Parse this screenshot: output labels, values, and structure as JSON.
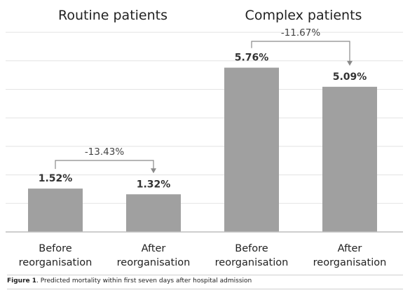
{
  "chart_data": {
    "type": "bar",
    "groups": [
      {
        "title": "Routine patients",
        "categories": [
          "Before reorganisation",
          "After reorganisation"
        ]
      },
      {
        "title": "Complex patients",
        "categories": [
          "Before reorganisation",
          "After reorganisation"
        ]
      }
    ],
    "categories": [
      [
        "Before",
        "reorganisation"
      ],
      [
        "After",
        "reorganisation"
      ],
      [
        "Before",
        "reorganisation"
      ],
      [
        "After",
        "reorganisation"
      ]
    ],
    "values": [
      1.52,
      1.32,
      5.76,
      5.09
    ],
    "value_labels": [
      "1.52%",
      "1.32%",
      "5.76%",
      "5.09%"
    ],
    "changes": [
      {
        "from": 0,
        "to": 1,
        "label": "-13.43%"
      },
      {
        "from": 2,
        "to": 3,
        "label": "-11.67%"
      }
    ],
    "ylim": [
      0,
      7.0
    ],
    "yunit": "%",
    "grid": true,
    "bar_color": "#a0a0a0",
    "title": "",
    "xlabel": "",
    "ylabel": ""
  },
  "caption": {
    "figure_label": "Figure 1",
    "text": ". Predicted mortality within first seven days after hospital admission"
  }
}
